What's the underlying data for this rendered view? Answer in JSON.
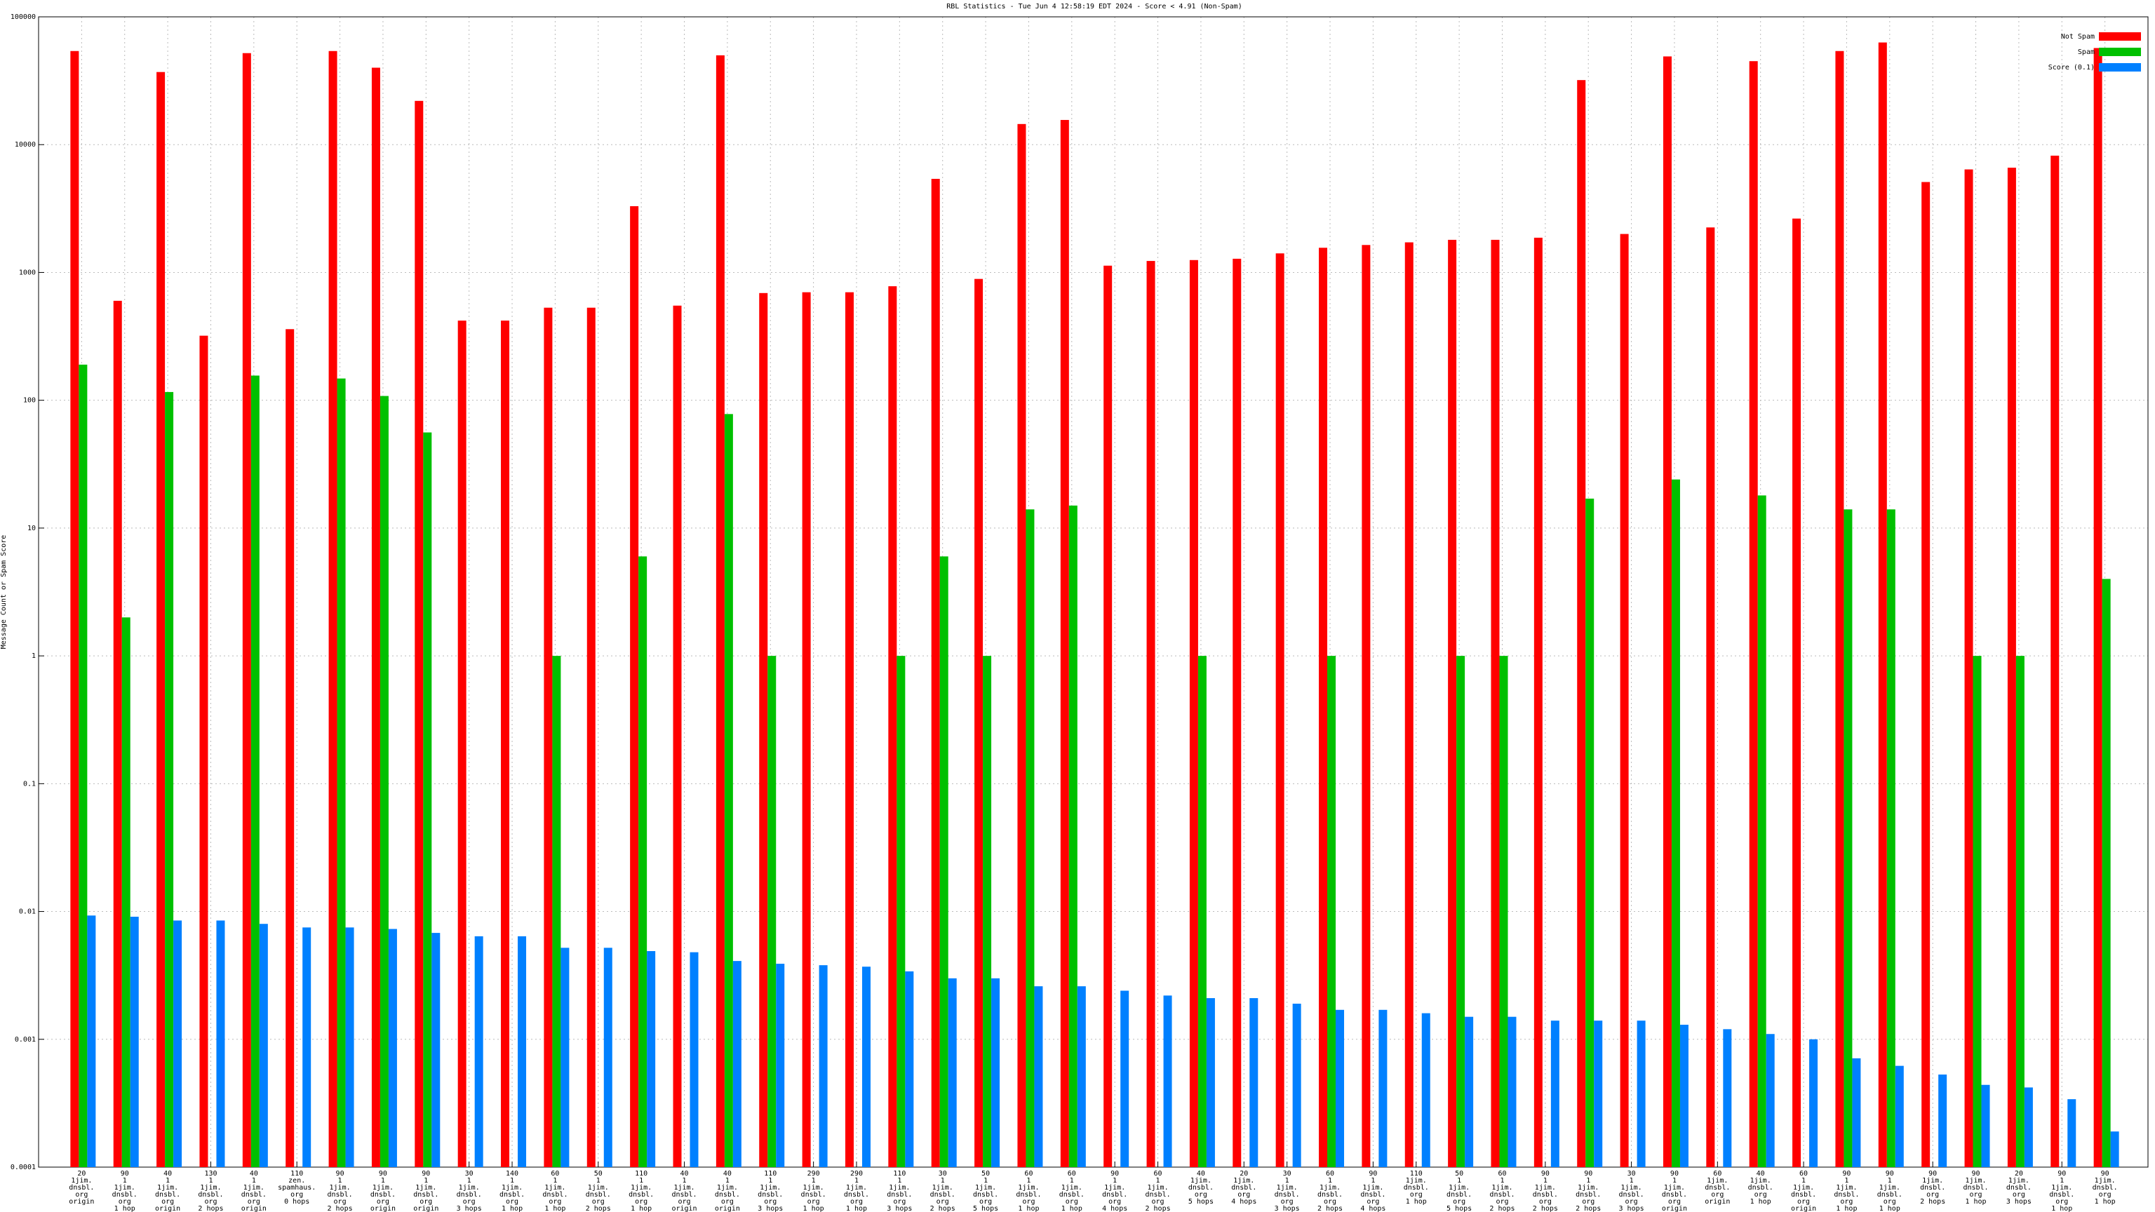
{
  "chart_data": {
    "type": "bar",
    "title": "RBL Statistics - Tue Jun  4 12:58:19 EDT 2024 - Score < 4.91 (Non-Spam)",
    "y_label": "Message Count or Spam Score",
    "log_y": true,
    "grid": true,
    "legend": "top-right",
    "ylim": [
      0.0001,
      100000
    ],
    "yticks": [
      0.0001,
      0.001,
      0.01,
      0.1,
      1,
      10,
      100,
      1000,
      10000,
      100000
    ],
    "categories": [
      [
        "20",
        "1jim.",
        "dnsbl.",
        "org",
        "origin"
      ],
      [
        "90",
        "1",
        "1jim.",
        "dnsbl.",
        "org",
        "1 hop"
      ],
      [
        "40",
        "1",
        "1jim.",
        "dnsbl.",
        "org",
        "origin"
      ],
      [
        "130",
        "1",
        "1jim.",
        "dnsbl.",
        "org",
        "2 hops"
      ],
      [
        "40",
        "1",
        "1jim.",
        "dnsbl.",
        "org",
        "origin"
      ],
      [
        "110",
        "zen.",
        "spamhaus.",
        "org",
        "0 hops"
      ],
      [
        "90",
        "1",
        "1jim.",
        "dnsbl.",
        "org",
        "2 hops"
      ],
      [
        "90",
        "1",
        "1jim.",
        "dnsbl.",
        "org",
        "origin"
      ],
      [
        "90",
        "1",
        "1jim.",
        "dnsbl.",
        "org",
        "origin"
      ],
      [
        "30",
        "1",
        "1jim.",
        "dnsbl.",
        "org",
        "3 hops"
      ],
      [
        "140",
        "1",
        "1jim.",
        "dnsbl.",
        "org",
        "1 hop"
      ],
      [
        "60",
        "1",
        "1jim.",
        "dnsbl.",
        "org",
        "1 hop"
      ],
      [
        "50",
        "1",
        "1jim.",
        "dnsbl.",
        "org",
        "2 hops"
      ],
      [
        "110",
        "1",
        "1jim.",
        "dnsbl.",
        "org",
        "1 hop"
      ],
      [
        "40",
        "1",
        "1jim.",
        "dnsbl.",
        "org",
        "origin"
      ],
      [
        "40",
        "1",
        "1jim.",
        "dnsbl.",
        "org",
        "origin"
      ],
      [
        "110",
        "1",
        "1jim.",
        "dnsbl.",
        "org",
        "3 hops"
      ],
      [
        "290",
        "1",
        "1jim.",
        "dnsbl.",
        "org",
        "1 hop"
      ],
      [
        "290",
        "1",
        "1jim.",
        "dnsbl.",
        "org",
        "1 hop"
      ],
      [
        "110",
        "1",
        "1jim.",
        "dnsbl.",
        "org",
        "3 hops"
      ],
      [
        "30",
        "1",
        "1jim.",
        "dnsbl.",
        "org",
        "2 hops"
      ],
      [
        "50",
        "1",
        "1jim.",
        "dnsbl.",
        "org",
        "5 hops"
      ],
      [
        "60",
        "1",
        "1jim.",
        "dnsbl.",
        "org",
        "1 hop"
      ],
      [
        "60",
        "1",
        "1jim.",
        "dnsbl.",
        "org",
        "1 hop"
      ],
      [
        "90",
        "1",
        "1jim.",
        "dnsbl.",
        "org",
        "4 hops"
      ],
      [
        "60",
        "1",
        "1jim.",
        "dnsbl.",
        "org",
        "2 hops"
      ],
      [
        "40",
        "1jim.",
        "dnsbl.",
        "org",
        "5 hops"
      ],
      [
        "20",
        "1jim.",
        "dnsbl.",
        "org",
        "4 hops"
      ],
      [
        "30",
        "1",
        "1jim.",
        "dnsbl.",
        "org",
        "3 hops"
      ],
      [
        "60",
        "1",
        "1jim.",
        "dnsbl.",
        "org",
        "2 hops"
      ],
      [
        "90",
        "1",
        "1jim.",
        "dnsbl.",
        "org",
        "4 hops"
      ],
      [
        "110",
        "1jim.",
        "dnsbl.",
        "org",
        "1 hop"
      ],
      [
        "50",
        "1",
        "1jim.",
        "dnsbl.",
        "org",
        "5 hops"
      ],
      [
        "60",
        "1",
        "1jim.",
        "dnsbl.",
        "org",
        "2 hops"
      ],
      [
        "90",
        "1",
        "1jim.",
        "dnsbl.",
        "org",
        "2 hops"
      ],
      [
        "90",
        "1",
        "1jim.",
        "dnsbl.",
        "org",
        "2 hops"
      ],
      [
        "30",
        "1",
        "1jim.",
        "dnsbl.",
        "org",
        "3 hops"
      ],
      [
        "90",
        "1",
        "1jim.",
        "dnsbl.",
        "org",
        "origin"
      ],
      [
        "60",
        "1jim.",
        "dnsbl.",
        "org",
        "origin"
      ],
      [
        "40",
        "1jim.",
        "dnsbl.",
        "org",
        "1 hop"
      ],
      [
        "60",
        "1",
        "1jim.",
        "dnsbl.",
        "org",
        "origin"
      ],
      [
        "90",
        "1",
        "1jim.",
        "dnsbl.",
        "org",
        "1 hop"
      ],
      [
        "90",
        "1",
        "1jim.",
        "dnsbl.",
        "org",
        "1 hop"
      ],
      [
        "90",
        "1jim.",
        "dnsbl.",
        "org",
        "2 hops"
      ],
      [
        "90",
        "1jim.",
        "dnsbl.",
        "org",
        "1 hop"
      ],
      [
        "20",
        "1jim.",
        "dnsbl.",
        "org",
        "3 hops"
      ],
      [
        "90",
        "1",
        "1jim.",
        "dnsbl.",
        "org",
        "1 hop"
      ],
      [
        "90",
        "1jim.",
        "dnsbl.",
        "org",
        "1 hop"
      ]
    ],
    "series": [
      {
        "name": "Not Spam",
        "color": "#ff0000",
        "values": [
          54000,
          600,
          37000,
          320,
          52000,
          360,
          54000,
          40000,
          22000,
          420,
          420,
          530,
          530,
          3300,
          550,
          50000,
          690,
          700,
          700,
          780,
          5400,
          890,
          14500,
          15600,
          1130,
          1230,
          1250,
          1280,
          1410,
          1560,
          1640,
          1720,
          1800,
          1800,
          1870,
          32000,
          2000,
          49000,
          2250,
          45000,
          2640,
          54000,
          63000,
          5100,
          6400,
          6600,
          8200,
          57000
        ]
      },
      {
        "name": "Spam",
        "color": "#00c000",
        "values": [
          190,
          2,
          116,
          null,
          156,
          null,
          148,
          108,
          56,
          null,
          null,
          1,
          null,
          6,
          null,
          78,
          1,
          null,
          null,
          1,
          6,
          1,
          14,
          15,
          null,
          null,
          1,
          null,
          null,
          1,
          null,
          null,
          1,
          1,
          null,
          17,
          null,
          24,
          null,
          18,
          null,
          14,
          14,
          null,
          1,
          1,
          null,
          4
        ]
      },
      {
        "name": "Score (0.1)",
        "color": "#0080ff",
        "values": [
          0.0093,
          0.0091,
          0.0085,
          0.0085,
          0.008,
          0.0075,
          0.0075,
          0.0073,
          0.0068,
          0.0064,
          0.0064,
          0.0052,
          0.0052,
          0.0049,
          0.0048,
          0.0041,
          0.0039,
          0.0038,
          0.0037,
          0.0034,
          0.003,
          0.003,
          0.0026,
          0.0026,
          0.0024,
          0.0022,
          0.0021,
          0.0021,
          0.0019,
          0.0017,
          0.0017,
          0.0016,
          0.0015,
          0.0015,
          0.0014,
          0.0014,
          0.0014,
          0.0013,
          0.0012,
          0.0011,
          0.001,
          0.00071,
          0.00062,
          0.00053,
          0.00044,
          0.00042,
          0.00034,
          0.00019
        ]
      }
    ]
  }
}
